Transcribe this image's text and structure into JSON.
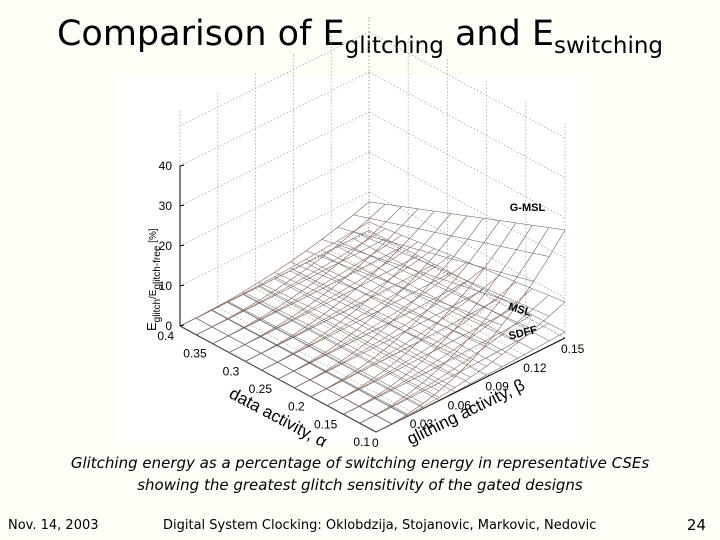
{
  "slide": {
    "title": {
      "main": "Comparison of E",
      "sub1": "glitching",
      "mid": " and E",
      "sub2": "switching"
    },
    "caption_line1": "Glitching energy as a percentage of switching energy in representative CSEs",
    "caption_line2": "showing the greatest glitch sensitivity of the gated designs",
    "footer_date": "Nov. 14, 2003",
    "footer_center": "Digital System Clocking: Oklobdzija, Stojanovic, Markovic, Nedovic",
    "page_number": "24"
  },
  "chart_data": {
    "type": "surface3d",
    "zlabel": "E_glitch/E_glitch-free [%]",
    "xlabel": "data activity, α",
    "ylabel": "glithing activity, β",
    "x_ticks": [
      "0.4",
      "0.35",
      "0.3",
      "0.25",
      "0.2",
      "0.15",
      "0.1"
    ],
    "y_ticks": [
      "0",
      "0.03",
      "0.06",
      "0.09",
      "0.12",
      "0.15"
    ],
    "z_ticks": [
      "0",
      "10",
      "20",
      "30",
      "40"
    ],
    "xlim": [
      0.1,
      0.4
    ],
    "ylim": [
      0,
      0.15
    ],
    "zlim": [
      0,
      40
    ],
    "series": [
      {
        "name": "G-MSL",
        "z_at_beta_0_15": 27,
        "z_at_beta_0": 0
      },
      {
        "name": "MSL",
        "z_at_beta_0_15": 9,
        "z_at_beta_0": 0
      },
      {
        "name": "SDFF",
        "z_at_beta_0_15": 1.5,
        "z_at_beta_0": 0
      }
    ]
  }
}
